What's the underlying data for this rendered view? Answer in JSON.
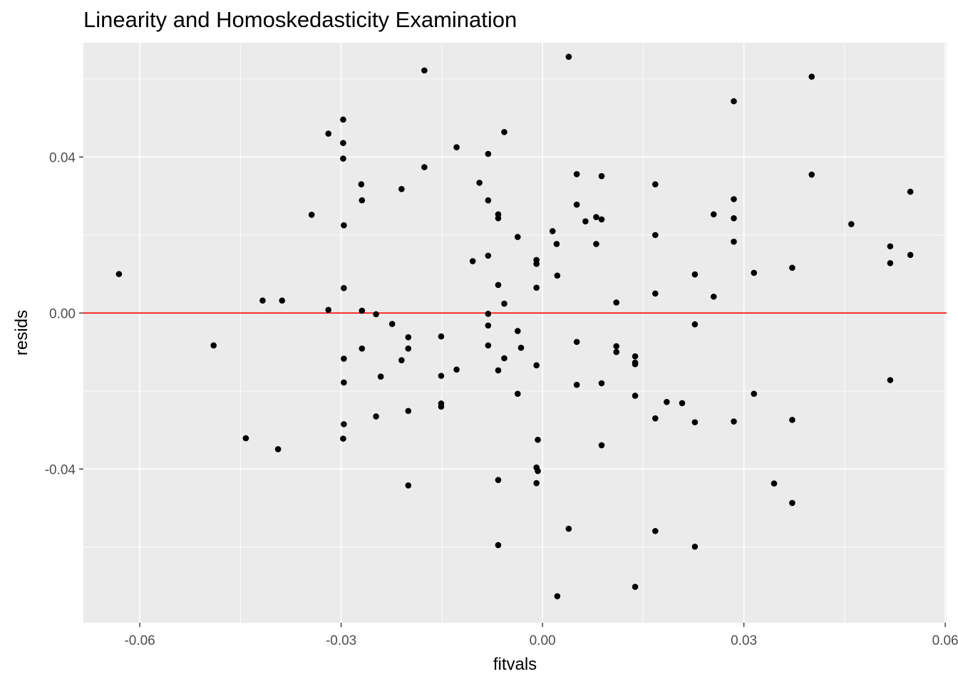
{
  "chart_data": {
    "type": "scatter",
    "title": "Linearity and Homoskedasticity Examination",
    "xlabel": "fitvals",
    "ylabel": "resids",
    "xlim": [
      -0.0684,
      0.0602
    ],
    "ylim": [
      -0.0794,
      0.0693
    ],
    "x_ticks": [
      -0.06,
      -0.03,
      0.0,
      0.03,
      0.06
    ],
    "x_tick_labels": [
      "-0.06",
      "-0.03",
      "0.00",
      "0.03",
      "0.06"
    ],
    "y_ticks": [
      -0.04,
      0.0,
      0.04
    ],
    "y_tick_labels": [
      "-0.04",
      "0.00",
      "0.04"
    ],
    "x_minor_breaks": [
      -0.045,
      -0.015,
      0.015,
      0.045
    ],
    "y_minor_breaks": [
      -0.06,
      -0.02,
      0.02,
      0.06
    ],
    "grid": true,
    "reference_line": {
      "type": "hline",
      "y": 0.0,
      "color": "#ff0000"
    },
    "colors": {
      "panel": "#ebebeb",
      "grid": "#ffffff",
      "points": "#000000"
    },
    "points": [
      {
        "x": -0.0631,
        "y": 0.01
      },
      {
        "x": -0.049,
        "y": -0.0083
      },
      {
        "x": -0.0442,
        "y": -0.0321
      },
      {
        "x": -0.0417,
        "y": 0.0032
      },
      {
        "x": -0.0394,
        "y": -0.0349
      },
      {
        "x": -0.0388,
        "y": 0.0032
      },
      {
        "x": -0.0344,
        "y": 0.0252
      },
      {
        "x": -0.0319,
        "y": 0.046
      },
      {
        "x": -0.0319,
        "y": 0.0008
      },
      {
        "x": -0.0297,
        "y": 0.0496
      },
      {
        "x": -0.0297,
        "y": 0.0436
      },
      {
        "x": -0.0297,
        "y": 0.0396
      },
      {
        "x": -0.0296,
        "y": 0.0225
      },
      {
        "x": -0.0296,
        "y": 0.0064
      },
      {
        "x": -0.0296,
        "y": -0.0117
      },
      {
        "x": -0.0296,
        "y": -0.0178
      },
      {
        "x": -0.0296,
        "y": -0.0285
      },
      {
        "x": -0.0297,
        "y": -0.0322
      },
      {
        "x": -0.027,
        "y": 0.033
      },
      {
        "x": -0.0269,
        "y": 0.0289
      },
      {
        "x": -0.0269,
        "y": 0.0006
      },
      {
        "x": -0.0269,
        "y": -0.0091
      },
      {
        "x": -0.0248,
        "y": -0.0003
      },
      {
        "x": -0.0248,
        "y": -0.0265
      },
      {
        "x": -0.0241,
        "y": -0.0163
      },
      {
        "x": -0.0224,
        "y": -0.0028
      },
      {
        "x": -0.021,
        "y": 0.0318
      },
      {
        "x": -0.021,
        "y": -0.0121
      },
      {
        "x": -0.02,
        "y": -0.0062
      },
      {
        "x": -0.02,
        "y": -0.0091
      },
      {
        "x": -0.02,
        "y": -0.0251
      },
      {
        "x": -0.02,
        "y": -0.0442
      },
      {
        "x": -0.0176,
        "y": 0.0374
      },
      {
        "x": -0.0176,
        "y": 0.0622
      },
      {
        "x": -0.0151,
        "y": -0.006
      },
      {
        "x": -0.0151,
        "y": -0.0161
      },
      {
        "x": -0.0151,
        "y": -0.0232
      },
      {
        "x": -0.0151,
        "y": -0.024
      },
      {
        "x": -0.0128,
        "y": 0.0425
      },
      {
        "x": -0.0128,
        "y": -0.0145
      },
      {
        "x": -0.0104,
        "y": 0.0133
      },
      {
        "x": -0.0094,
        "y": 0.0334
      },
      {
        "x": -0.0081,
        "y": 0.0408
      },
      {
        "x": -0.0081,
        "y": 0.0289
      },
      {
        "x": -0.0081,
        "y": 0.0147
      },
      {
        "x": -0.0081,
        "y": -0.0002
      },
      {
        "x": -0.0081,
        "y": -0.0032
      },
      {
        "x": -0.0081,
        "y": -0.0083
      },
      {
        "x": -0.0066,
        "y": 0.0253
      },
      {
        "x": -0.0066,
        "y": 0.0243
      },
      {
        "x": -0.0066,
        "y": 0.0072
      },
      {
        "x": -0.0066,
        "y": -0.0147
      },
      {
        "x": -0.0066,
        "y": -0.0428
      },
      {
        "x": -0.0066,
        "y": -0.0595
      },
      {
        "x": -0.0057,
        "y": 0.0464
      },
      {
        "x": -0.0057,
        "y": 0.0024
      },
      {
        "x": -0.0057,
        "y": -0.0116
      },
      {
        "x": -0.0037,
        "y": 0.0195
      },
      {
        "x": -0.0037,
        "y": -0.0046
      },
      {
        "x": -0.0037,
        "y": -0.0207
      },
      {
        "x": -0.0032,
        "y": -0.0089
      },
      {
        "x": -0.0009,
        "y": 0.0136
      },
      {
        "x": -0.0009,
        "y": 0.0126
      },
      {
        "x": -0.0009,
        "y": 0.0065
      },
      {
        "x": -0.0009,
        "y": -0.0134
      },
      {
        "x": -0.0007,
        "y": -0.0325
      },
      {
        "x": -0.0009,
        "y": -0.0396
      },
      {
        "x": -0.0007,
        "y": -0.0405
      },
      {
        "x": -0.0009,
        "y": -0.0436
      },
      {
        "x": 0.0015,
        "y": 0.021
      },
      {
        "x": 0.0021,
        "y": 0.0177
      },
      {
        "x": 0.0022,
        "y": 0.0096
      },
      {
        "x": 0.0022,
        "y": -0.0726
      },
      {
        "x": 0.0039,
        "y": 0.0657
      },
      {
        "x": 0.0039,
        "y": -0.0553
      },
      {
        "x": 0.0051,
        "y": 0.0356
      },
      {
        "x": 0.0051,
        "y": 0.0278
      },
      {
        "x": 0.0051,
        "y": -0.0074
      },
      {
        "x": 0.0051,
        "y": -0.0184
      },
      {
        "x": 0.0064,
        "y": 0.0235
      },
      {
        "x": 0.008,
        "y": 0.0246
      },
      {
        "x": 0.008,
        "y": 0.0177
      },
      {
        "x": 0.0088,
        "y": 0.0351
      },
      {
        "x": 0.0088,
        "y": 0.024
      },
      {
        "x": 0.0088,
        "y": -0.018
      },
      {
        "x": 0.0088,
        "y": -0.0339
      },
      {
        "x": 0.011,
        "y": 0.0027
      },
      {
        "x": 0.011,
        "y": -0.0085
      },
      {
        "x": 0.011,
        "y": -0.01
      },
      {
        "x": 0.0138,
        "y": -0.0111
      },
      {
        "x": 0.0138,
        "y": -0.0127
      },
      {
        "x": 0.0138,
        "y": -0.0131
      },
      {
        "x": 0.0138,
        "y": -0.0212
      },
      {
        "x": 0.0138,
        "y": -0.0702
      },
      {
        "x": 0.0168,
        "y": 0.033
      },
      {
        "x": 0.0168,
        "y": 0.02
      },
      {
        "x": 0.0168,
        "y": 0.005
      },
      {
        "x": 0.0168,
        "y": -0.027
      },
      {
        "x": 0.0168,
        "y": -0.0559
      },
      {
        "x": 0.0185,
        "y": -0.0228
      },
      {
        "x": 0.0208,
        "y": -0.0231
      },
      {
        "x": 0.0227,
        "y": 0.0099
      },
      {
        "x": 0.0227,
        "y": -0.0029
      },
      {
        "x": 0.0227,
        "y": -0.028
      },
      {
        "x": 0.0227,
        "y": -0.0599
      },
      {
        "x": 0.0255,
        "y": 0.0253
      },
      {
        "x": 0.0255,
        "y": 0.0042
      },
      {
        "x": 0.0285,
        "y": 0.0543
      },
      {
        "x": 0.0285,
        "y": 0.0292
      },
      {
        "x": 0.0285,
        "y": 0.0243
      },
      {
        "x": 0.0285,
        "y": 0.0183
      },
      {
        "x": 0.0285,
        "y": -0.0278
      },
      {
        "x": 0.0315,
        "y": 0.0103
      },
      {
        "x": 0.0315,
        "y": -0.0207
      },
      {
        "x": 0.0345,
        "y": -0.0437
      },
      {
        "x": 0.0372,
        "y": 0.0116
      },
      {
        "x": 0.0372,
        "y": -0.0274
      },
      {
        "x": 0.0372,
        "y": -0.0487
      },
      {
        "x": 0.0401,
        "y": 0.0606
      },
      {
        "x": 0.0401,
        "y": 0.0355
      },
      {
        "x": 0.046,
        "y": 0.0228
      },
      {
        "x": 0.0518,
        "y": 0.0171
      },
      {
        "x": 0.0518,
        "y": 0.0128
      },
      {
        "x": 0.0518,
        "y": -0.0172
      },
      {
        "x": 0.0548,
        "y": 0.0311
      },
      {
        "x": 0.0548,
        "y": 0.0149
      }
    ]
  }
}
